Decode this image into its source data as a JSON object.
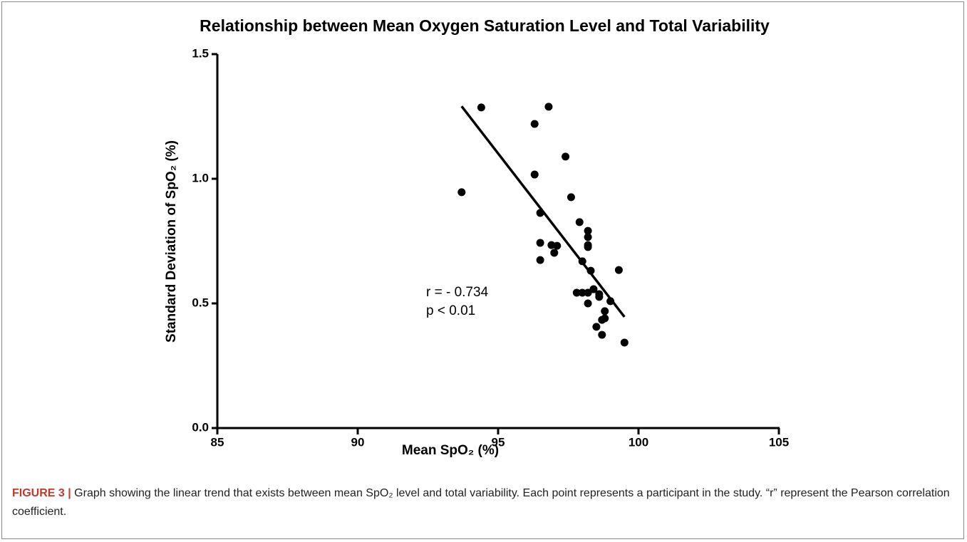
{
  "chart_data": {
    "type": "scatter",
    "title": "Relationship between Mean Oxygen Saturation Level and Total Variability",
    "xlabel": "Mean SpO₂ (%)",
    "ylabel": "Standard Deviation of SpO₂ (%)",
    "annotations": [
      "r = - 0.734",
      "p < 0.01"
    ],
    "color": "#000000",
    "x": [
      93.7,
      94.4,
      96.8,
      96.3,
      96.3,
      97.4,
      96.5,
      97.6,
      96.5,
      96.9,
      97.1,
      97.0,
      96.5,
      97.9,
      98.2,
      98.2,
      98.2,
      98.2,
      98.0,
      98.3,
      99.3,
      97.8,
      98.0,
      98.2,
      98.4,
      98.6,
      98.6,
      98.2,
      99.0,
      98.8,
      98.8,
      98.7,
      98.5,
      98.7,
      99.5
    ],
    "y": [
      0.946,
      1.286,
      1.289,
      1.22,
      1.017,
      1.089,
      0.863,
      0.926,
      0.743,
      0.734,
      0.731,
      0.703,
      0.674,
      0.826,
      0.791,
      0.766,
      0.734,
      0.726,
      0.669,
      0.631,
      0.634,
      0.543,
      0.543,
      0.543,
      0.557,
      0.537,
      0.526,
      0.5,
      0.509,
      0.469,
      0.44,
      0.434,
      0.406,
      0.374,
      0.343
    ],
    "fit_line": {
      "x": [
        93.7,
        99.5
      ],
      "y": [
        1.291,
        0.446
      ]
    },
    "xlim": [
      85,
      105
    ],
    "xticks": [
      85,
      90,
      95,
      100,
      105
    ],
    "ylim": [
      0,
      1.5
    ],
    "yticks": [
      {
        "value": 0,
        "label": "0.0"
      },
      0.5,
      {
        "value": 1,
        "label": "1.0"
      },
      {
        "value": 1.5,
        "label": "1.5"
      }
    ]
  },
  "caption": {
    "label": "FIGURE 3 |",
    "text": "Graph showing the linear trend that exists between mean SpO₂ level and total variability. Each point represents a participant in the study. “r” represent the Pearson correlation coefficient."
  }
}
